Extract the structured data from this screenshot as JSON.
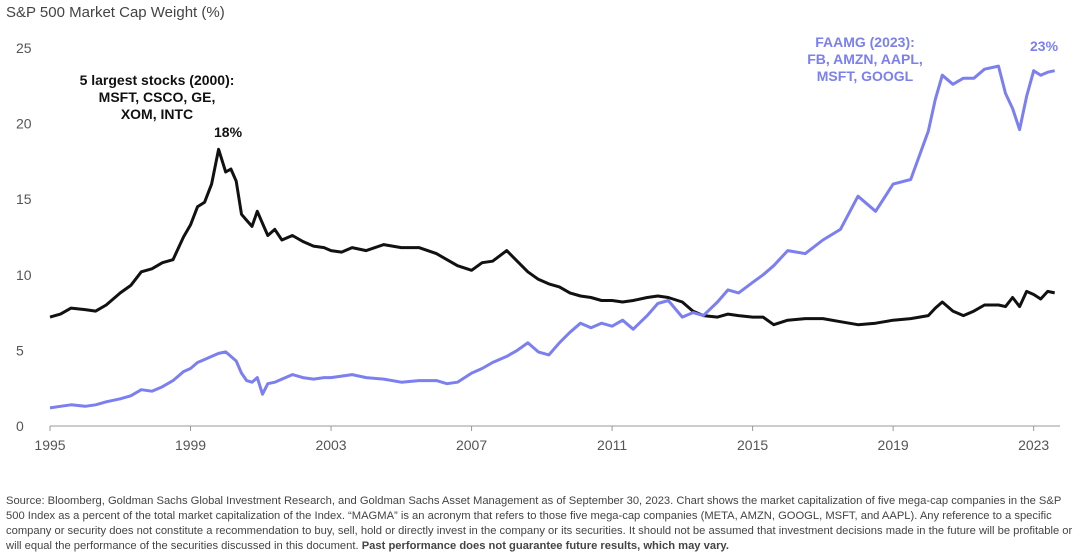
{
  "title": "S&P 500 Market Cap Weight (%)",
  "chart_data": {
    "type": "line",
    "ylim": [
      0,
      25
    ],
    "xlim": [
      1995,
      2023.75
    ],
    "yticks": [
      0,
      5,
      10,
      15,
      20,
      25
    ],
    "xticks": [
      1995,
      1999,
      2003,
      2007,
      2011,
      2015,
      2019,
      2023
    ],
    "ytick_labels": [
      "0",
      "5",
      "10",
      "15",
      "20",
      "25"
    ],
    "xtick_labels": [
      "1995",
      "1999",
      "2003",
      "2007",
      "2011",
      "2015",
      "2019",
      "2023"
    ],
    "grid": false,
    "series": [
      {
        "color": "#111111",
        "x": [
          1995.0,
          1995.3,
          1995.6,
          1996.0,
          1996.3,
          1996.6,
          1997.0,
          1997.3,
          1997.6,
          1997.9,
          1998.2,
          1998.5,
          1998.8,
          1999.0,
          1999.2,
          1999.4,
          1999.6,
          1999.8,
          2000.0,
          2000.15,
          2000.3,
          2000.45,
          2000.6,
          2000.75,
          2000.9,
          2001.05,
          2001.2,
          2001.4,
          2001.6,
          2001.9,
          2002.2,
          2002.5,
          2002.8,
          2003.0,
          2003.3,
          2003.6,
          2004.0,
          2004.5,
          2005.0,
          2005.5,
          2006.0,
          2006.3,
          2006.6,
          2007.0,
          2007.3,
          2007.6,
          2008.0,
          2008.3,
          2008.6,
          2008.9,
          2009.2,
          2009.5,
          2009.8,
          2010.1,
          2010.4,
          2010.7,
          2011.0,
          2011.3,
          2011.6,
          2012.0,
          2012.3,
          2012.6,
          2013.0,
          2013.3,
          2013.6,
          2014.0,
          2014.3,
          2014.6,
          2015.0,
          2015.3,
          2015.6,
          2016.0,
          2016.5,
          2017.0,
          2017.5,
          2018.0,
          2018.5,
          2019.0,
          2019.5,
          2020.0,
          2020.2,
          2020.4,
          2020.7,
          2021.0,
          2021.3,
          2021.6,
          2022.0,
          2022.2,
          2022.4,
          2022.6,
          2022.8,
          2023.0,
          2023.2,
          2023.4,
          2023.6
        ],
        "values": [
          7.2,
          7.4,
          7.8,
          7.7,
          7.6,
          8.0,
          8.8,
          9.3,
          10.2,
          10.4,
          10.8,
          11.0,
          12.5,
          13.3,
          14.5,
          14.8,
          16.0,
          18.3,
          16.8,
          17.0,
          16.2,
          14.0,
          13.6,
          13.2,
          14.2,
          13.4,
          12.6,
          13.0,
          12.3,
          12.6,
          12.2,
          11.9,
          11.8,
          11.6,
          11.5,
          11.8,
          11.6,
          12.0,
          11.8,
          11.8,
          11.4,
          11.0,
          10.6,
          10.3,
          10.8,
          10.9,
          11.6,
          10.9,
          10.2,
          9.7,
          9.4,
          9.2,
          8.8,
          8.6,
          8.5,
          8.3,
          8.3,
          8.2,
          8.3,
          8.5,
          8.6,
          8.5,
          8.2,
          7.6,
          7.3,
          7.2,
          7.4,
          7.3,
          7.2,
          7.2,
          6.7,
          7.0,
          7.1,
          7.1,
          6.9,
          6.7,
          6.8,
          7.0,
          7.1,
          7.3,
          7.8,
          8.2,
          7.6,
          7.3,
          7.6,
          8.0,
          8.0,
          7.9,
          8.5,
          7.9,
          8.9,
          8.7,
          8.4,
          8.9,
          8.8
        ]
      },
      {
        "color": "#7b7ff0",
        "x": [
          1995.0,
          1995.3,
          1995.6,
          1996.0,
          1996.3,
          1996.6,
          1997.0,
          1997.3,
          1997.6,
          1997.9,
          1998.2,
          1998.5,
          1998.8,
          1999.0,
          1999.2,
          1999.4,
          1999.6,
          1999.8,
          2000.0,
          2000.15,
          2000.3,
          2000.45,
          2000.6,
          2000.75,
          2000.9,
          2001.05,
          2001.2,
          2001.4,
          2001.6,
          2001.9,
          2002.2,
          2002.5,
          2002.8,
          2003.0,
          2003.3,
          2003.6,
          2004.0,
          2004.5,
          2005.0,
          2005.5,
          2006.0,
          2006.3,
          2006.6,
          2007.0,
          2007.3,
          2007.6,
          2008.0,
          2008.3,
          2008.6,
          2008.9,
          2009.2,
          2009.5,
          2009.8,
          2010.1,
          2010.4,
          2010.7,
          2011.0,
          2011.3,
          2011.6,
          2012.0,
          2012.3,
          2012.6,
          2013.0,
          2013.3,
          2013.6,
          2014.0,
          2014.3,
          2014.6,
          2015.0,
          2015.3,
          2015.6,
          2016.0,
          2016.5,
          2017.0,
          2017.5,
          2018.0,
          2018.5,
          2019.0,
          2019.5,
          2020.0,
          2020.2,
          2020.4,
          2020.7,
          2021.0,
          2021.3,
          2021.6,
          2022.0,
          2022.2,
          2022.4,
          2022.6,
          2022.8,
          2023.0,
          2023.2,
          2023.4,
          2023.6
        ],
        "values": [
          1.2,
          1.3,
          1.4,
          1.3,
          1.4,
          1.6,
          1.8,
          2.0,
          2.4,
          2.3,
          2.6,
          3.0,
          3.6,
          3.8,
          4.2,
          4.4,
          4.6,
          4.8,
          4.9,
          4.6,
          4.3,
          3.5,
          3.0,
          2.9,
          3.2,
          2.1,
          2.8,
          2.9,
          3.1,
          3.4,
          3.2,
          3.1,
          3.2,
          3.2,
          3.3,
          3.4,
          3.2,
          3.1,
          2.9,
          3.0,
          3.0,
          2.8,
          2.9,
          3.5,
          3.8,
          4.2,
          4.6,
          5.0,
          5.5,
          4.9,
          4.7,
          5.5,
          6.2,
          6.8,
          6.5,
          6.8,
          6.6,
          7.0,
          6.4,
          7.3,
          8.1,
          8.3,
          7.2,
          7.5,
          7.3,
          8.2,
          9.0,
          8.8,
          9.5,
          10.0,
          10.6,
          11.6,
          11.4,
          12.3,
          13.0,
          15.2,
          14.2,
          16.0,
          16.3,
          19.5,
          21.6,
          23.2,
          22.6,
          23.0,
          23.0,
          23.6,
          23.8,
          22.0,
          21.0,
          19.6,
          21.8,
          23.5,
          23.2,
          23.4,
          23.5
        ]
      }
    ],
    "annotations": {
      "left_label": "5 largest stocks (2000):\nMSFT, CSCO, GE,\nXOM, INTC",
      "left_peak": "18%",
      "right_label": "FAAMG (2023):\nFB, AMZN, AAPL,\nMSFT, GOOGL",
      "right_peak": "23%"
    }
  },
  "source_text": "Source: Bloomberg, Goldman Sachs Global Investment Research, and Goldman Sachs Asset Management as of September 30, 2023. Chart shows the market capitalization of five mega-cap companies in the S&P 500 Index as a percent of the total market capitalization of the Index. “MAGMA” is an acronym that refers to those five mega-cap companies (META, AMZN, GOOGL, MSFT, and AAPL). Any reference to a specific company or security does not constitute a recommendation to buy, sell, hold or directly invest in the company or its securities. It should not be assumed that investment decisions made in the future will be profitable or will equal the performance of the securities discussed in this document.",
  "source_bold": "Past performance does not guarantee future results, which may vary."
}
